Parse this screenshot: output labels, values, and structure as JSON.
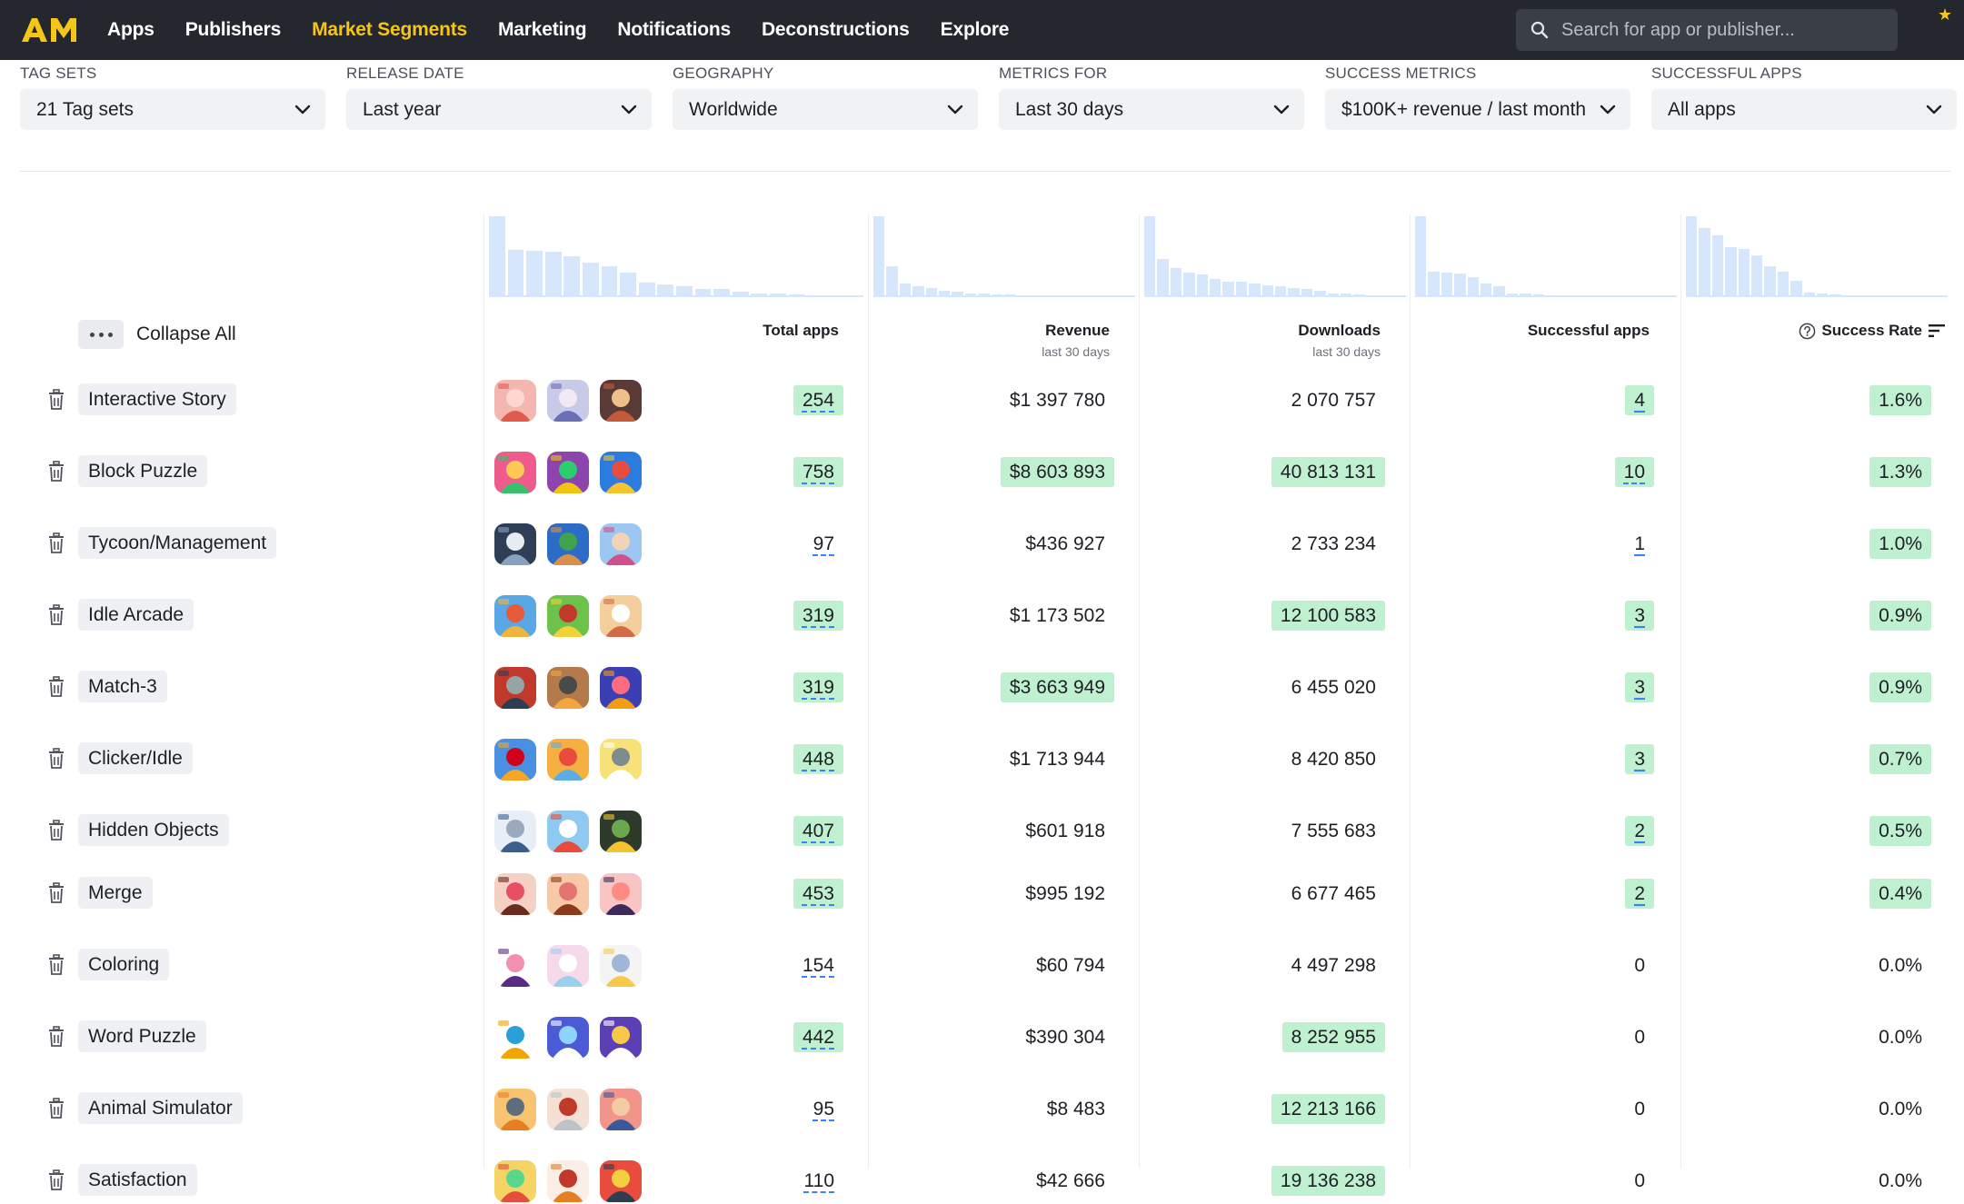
{
  "colors": {
    "accent": "#f5c518",
    "topbar": "#24272e",
    "highlight": "#bff0cf",
    "histogram": "#d6e6fd"
  },
  "nav": {
    "items": [
      {
        "label": "Apps",
        "active": false
      },
      {
        "label": "Publishers",
        "active": false
      },
      {
        "label": "Market Segments",
        "active": true
      },
      {
        "label": "Marketing",
        "active": false
      },
      {
        "label": "Notifications",
        "active": false
      },
      {
        "label": "Deconstructions",
        "active": false
      },
      {
        "label": "Explore",
        "active": false
      }
    ],
    "search_placeholder": "Search for app or publisher..."
  },
  "filters": [
    {
      "label": "TAG SETS",
      "value": "21 Tag sets"
    },
    {
      "label": "RELEASE DATE",
      "value": "Last year"
    },
    {
      "label": "GEOGRAPHY",
      "value": "Worldwide"
    },
    {
      "label": "METRICS FOR",
      "value": "Last 30 days"
    },
    {
      "label": "SUCCESS METRICS",
      "value": "$100K+ revenue / last month"
    },
    {
      "label": "SUCCESSFUL APPS",
      "value": "All apps"
    }
  ],
  "table": {
    "collapse_label": "Collapse All",
    "headers": {
      "total_apps": "Total apps",
      "revenue": "Revenue",
      "revenue_sub": "last 30 days",
      "downloads": "Downloads",
      "downloads_sub": "last 30 days",
      "successful_apps": "Successful apps",
      "success_rate": "Success Rate"
    },
    "histograms": {
      "total_apps": [
        1.0,
        0.58,
        0.57,
        0.56,
        0.51,
        0.43,
        0.38,
        0.3,
        0.18,
        0.16,
        0.13,
        0.1,
        0.1,
        0.07,
        0.05,
        0.04,
        0.03,
        0.02,
        0.02,
        0.02
      ],
      "revenue": [
        1.0,
        0.38,
        0.17,
        0.14,
        0.11,
        0.08,
        0.07,
        0.05,
        0.04,
        0.03,
        0.03,
        0.02,
        0.02,
        0.02,
        0.02,
        0.02,
        0.02,
        0.02,
        0.02,
        0.02
      ],
      "downloads": [
        1.0,
        0.47,
        0.36,
        0.3,
        0.28,
        0.23,
        0.19,
        0.19,
        0.17,
        0.15,
        0.13,
        0.11,
        0.1,
        0.08,
        0.05,
        0.04,
        0.03,
        0.02,
        0.02,
        0.02
      ],
      "successful_apps": [
        1.0,
        0.32,
        0.3,
        0.29,
        0.25,
        0.17,
        0.13,
        0.05,
        0.04,
        0.03,
        0.02,
        0.02,
        0.02,
        0.02,
        0.02,
        0.02,
        0.02,
        0.02,
        0.02,
        0.02
      ],
      "success_rate": [
        1.0,
        0.85,
        0.76,
        0.62,
        0.6,
        0.52,
        0.38,
        0.32,
        0.2,
        0.06,
        0.04,
        0.03,
        0.02,
        0.02,
        0.02,
        0.02,
        0.02,
        0.02,
        0.02,
        0.02
      ]
    },
    "rows": [
      {
        "name": "Interactive Story",
        "icons": [
          "red-haired-girl-icon",
          "anime-boy-icon",
          "couple-story-icon"
        ],
        "total_apps": "254",
        "total_hl": true,
        "revenue": "$1 397 780",
        "revenue_hl": false,
        "downloads": "2 070 757",
        "downloads_hl": false,
        "successful": "4",
        "successful_hl": true,
        "rate": "1.6%",
        "rate_hl": true
      },
      {
        "name": "Block Puzzle",
        "icons": [
          "pink-block-icon",
          "stacked-cubes-icon",
          "bus-jam-icon"
        ],
        "total_apps": "758",
        "total_hl": true,
        "revenue": "$8 603 893",
        "revenue_hl": true,
        "downloads": "40 813 131",
        "downloads_hl": true,
        "successful": "10",
        "successful_hl": true,
        "rate": "1.3%",
        "rate_hl": true
      },
      {
        "name": "Tycoon/Management",
        "icons": [
          "truck-2025-icon",
          "businessman-icon",
          "shopping-girl-icon"
        ],
        "total_apps": "97",
        "total_hl": false,
        "revenue": "$436 927",
        "revenue_hl": false,
        "downloads": "2 733 234",
        "downloads_hl": false,
        "successful": "1",
        "successful_hl": false,
        "rate": "1.0%",
        "rate_hl": true
      },
      {
        "name": "Idle Arcade",
        "icons": [
          "map-character-icon",
          "green-runner-icon",
          "desert-tower-icon"
        ],
        "total_apps": "319",
        "total_hl": true,
        "revenue": "$1 173 502",
        "revenue_hl": false,
        "downloads": "12 100 583",
        "downloads_hl": true,
        "successful": "3",
        "successful_hl": true,
        "rate": "0.9%",
        "rate_hl": true
      },
      {
        "name": "Match-3",
        "icons": [
          "red-train-icon",
          "factory-icon",
          "fish-hero-icon"
        ],
        "total_apps": "319",
        "total_hl": true,
        "revenue": "$3 663 949",
        "revenue_hl": true,
        "downloads": "6 455 020",
        "downloads_hl": false,
        "successful": "3",
        "successful_hl": true,
        "rate": "0.9%",
        "rate_hl": true
      },
      {
        "name": "Clicker/Idle",
        "icons": [
          "tycoon-man-icon",
          "city-builder-icon",
          "scientist-icon"
        ],
        "total_apps": "448",
        "total_hl": true,
        "revenue": "$1 713 944",
        "revenue_hl": false,
        "downloads": "8 420 850",
        "downloads_hl": false,
        "successful": "3",
        "successful_hl": true,
        "rate": "0.7%",
        "rate_hl": true
      },
      {
        "name": "Hidden Objects",
        "icons": [
          "owl-badge-icon",
          "lighthouse-icon",
          "gold-cart-icon"
        ],
        "total_apps": "407",
        "total_hl": true,
        "revenue": "$601 918",
        "revenue_hl": false,
        "downloads": "7 555 683",
        "downloads_hl": false,
        "successful": "2",
        "successful_hl": true,
        "rate": "0.5%",
        "rate_hl": true
      },
      {
        "name": "Merge",
        "icons": [
          "brunette-woman-icon",
          "smiling-woman-icon",
          "sunglasses-girl-icon"
        ],
        "total_apps": "453",
        "total_hl": true,
        "revenue": "$995 192",
        "revenue_hl": false,
        "downloads": "6 677 465",
        "downloads_hl": false,
        "successful": "2",
        "successful_hl": true,
        "rate": "0.4%",
        "rate_hl": true
      },
      {
        "name": "Coloring",
        "icons": [
          "kuromi-icon",
          "unicorn-icon",
          "sketch-girl-icon"
        ],
        "total_apps": "154",
        "total_hl": false,
        "revenue": "$60 794",
        "revenue_hl": false,
        "downloads": "4 497 298",
        "downloads_hl": false,
        "successful": "0",
        "successful_hl": false,
        "rate": "0.0%",
        "rate_hl": false
      },
      {
        "name": "Word Puzzle",
        "icons": [
          "letter-grid-icon",
          "find-the-word-icon",
          "word-tiles-icon"
        ],
        "total_apps": "442",
        "total_hl": true,
        "revenue": "$390 304",
        "revenue_hl": false,
        "downloads": "8 252 955",
        "downloads_hl": true,
        "successful": "0",
        "successful_hl": false,
        "rate": "0.0%",
        "rate_hl": false
      },
      {
        "name": "Animal Simulator",
        "icons": [
          "cartoon-boy-icon",
          "grandma-icon",
          "girl-bow-icon"
        ],
        "total_apps": "95",
        "total_hl": false,
        "revenue": "$8 483",
        "revenue_hl": false,
        "downloads": "12 213 166",
        "downloads_hl": true,
        "successful": "0",
        "successful_hl": false,
        "rate": "0.0%",
        "rate_hl": false
      },
      {
        "name": "Satisfaction",
        "icons": [
          "lunchbox-icon",
          "cookie-icon",
          "organizer-icon"
        ],
        "total_apps": "110",
        "total_hl": false,
        "revenue": "$42 666",
        "revenue_hl": false,
        "downloads": "19 136 238",
        "downloads_hl": true,
        "successful": "0",
        "successful_hl": false,
        "rate": "0.0%",
        "rate_hl": false
      }
    ]
  }
}
